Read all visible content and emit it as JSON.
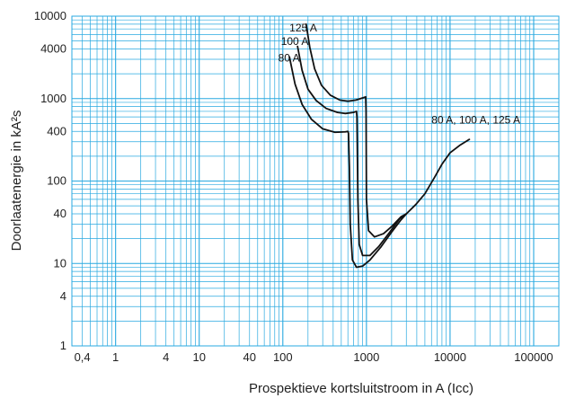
{
  "chart_data": {
    "type": "line",
    "title": "",
    "xlabel": "Prospektieve kortsluitstroom in A (Icc)",
    "ylabel": "Doorlaatenergie in kA²s",
    "xscale": "log",
    "yscale": "log",
    "xlim": [
      0.3,
      200000
    ],
    "ylim": [
      1,
      10000
    ],
    "grid": true,
    "colors": {
      "grid": "#29a9e0",
      "line": "#111111"
    },
    "x_ticks": [
      {
        "value": 0.4,
        "label": "0,4"
      },
      {
        "value": 1,
        "label": "1"
      },
      {
        "value": 4,
        "label": "4"
      },
      {
        "value": 10,
        "label": "10"
      },
      {
        "value": 40,
        "label": "40"
      },
      {
        "value": 100,
        "label": "100"
      },
      {
        "value": 1000,
        "label": "1000"
      },
      {
        "value": 10000,
        "label": "10000"
      },
      {
        "value": 100000,
        "label": "100000"
      }
    ],
    "y_ticks": [
      {
        "value": 1,
        "label": "1"
      },
      {
        "value": 4,
        "label": "4"
      },
      {
        "value": 10,
        "label": "10"
      },
      {
        "value": 40,
        "label": "40"
      },
      {
        "value": 100,
        "label": "100"
      },
      {
        "value": 400,
        "label": "400"
      },
      {
        "value": 1000,
        "label": "1000"
      },
      {
        "value": 4000,
        "label": "4000"
      },
      {
        "value": 10000,
        "label": "10000"
      }
    ],
    "series": [
      {
        "name": "80 A",
        "points": [
          [
            120,
            3200
          ],
          [
            140,
            1500
          ],
          [
            170,
            850
          ],
          [
            220,
            560
          ],
          [
            300,
            430
          ],
          [
            420,
            390
          ],
          [
            560,
            395
          ],
          [
            600,
            400
          ],
          [
            610,
            380
          ],
          [
            625,
            150
          ],
          [
            640,
            30
          ],
          [
            680,
            11
          ],
          [
            760,
            9
          ],
          [
            900,
            9.3
          ],
          [
            1100,
            11
          ],
          [
            1500,
            16
          ],
          [
            2000,
            24
          ],
          [
            2600,
            34
          ],
          [
            3000,
            40
          ]
        ]
      },
      {
        "name": "100 A",
        "points": [
          [
            150,
            4300
          ],
          [
            170,
            2200
          ],
          [
            200,
            1300
          ],
          [
            250,
            950
          ],
          [
            330,
            760
          ],
          [
            450,
            680
          ],
          [
            560,
            660
          ],
          [
            700,
            680
          ],
          [
            760,
            700
          ],
          [
            770,
            600
          ],
          [
            790,
            60
          ],
          [
            820,
            17
          ],
          [
            900,
            12.5
          ],
          [
            1100,
            12.5
          ],
          [
            1400,
            16
          ],
          [
            1900,
            24
          ],
          [
            2500,
            35
          ],
          [
            3000,
            40
          ]
        ]
      },
      {
        "name": "125 A",
        "points": [
          [
            190,
            8000
          ],
          [
            210,
            4200
          ],
          [
            240,
            2300
          ],
          [
            290,
            1450
          ],
          [
            370,
            1100
          ],
          [
            480,
            960
          ],
          [
            600,
            930
          ],
          [
            750,
            960
          ],
          [
            900,
            1020
          ],
          [
            980,
            1050
          ],
          [
            990,
            700
          ],
          [
            1000,
            60
          ],
          [
            1060,
            25
          ],
          [
            1250,
            21
          ],
          [
            1600,
            23
          ],
          [
            2000,
            28
          ],
          [
            2600,
            37
          ],
          [
            3000,
            40
          ]
        ]
      },
      {
        "name": "80 A, 100 A, 125 A",
        "points": [
          [
            3000,
            40
          ],
          [
            3900,
            52
          ],
          [
            5000,
            70
          ],
          [
            6500,
            110
          ],
          [
            8000,
            160
          ],
          [
            10000,
            220
          ],
          [
            13000,
            270
          ],
          [
            17000,
            320
          ]
        ]
      }
    ],
    "annotations": [
      {
        "text": "125 A",
        "x": 120,
        "y": 6500
      },
      {
        "text": "100 A",
        "x": 95,
        "y": 4500
      },
      {
        "text": "80 A",
        "x": 88,
        "y": 2800
      },
      {
        "text": "80 A, 100 A, 125 A",
        "x": 6000,
        "y": 500
      }
    ]
  }
}
